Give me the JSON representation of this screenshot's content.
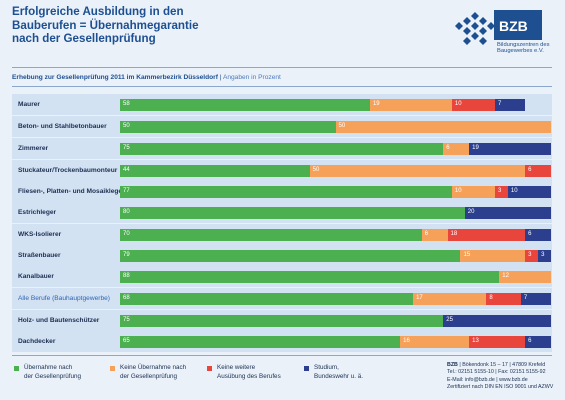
{
  "header": {
    "title_lines": [
      "Erfolgreiche Ausbildung in den",
      "Bauberufen = Übernahmegarantie",
      "nach der Gesellenprüfung"
    ],
    "logo_text": "BZB",
    "logo_subtitle_lines": [
      "Bildungszentren des",
      "Baugewerbes e.V."
    ]
  },
  "subheading": {
    "main": "Erhebung zur Gesellenprüfung 2011 im Kammerbezirk Düsseldorf",
    "separator": " | ",
    "unit": "Angaben in Prozent"
  },
  "chart_data": {
    "type": "bar",
    "orientation": "horizontal",
    "stacked": true,
    "xlim": [
      0,
      100
    ],
    "categories": [
      "Maurer",
      "Beton- und Stahlbetonbauer",
      "Zimmerer",
      "Stuckateur/Trockenbaumonteur",
      "Fliesen-, Platten- und Mosaikleger",
      "Estrichleger",
      "WKS-Isolierer",
      "Straßenbauer",
      "Kanalbauer",
      "Alle Berufe (Bauhauptgewerbe)",
      "Holz- und Bautenschützer",
      "Dachdecker"
    ],
    "highlighted_category": "Alle Berufe (Bauhauptgewerbe)",
    "series": [
      {
        "name": "Übernahme nach der Gesellenprüfung",
        "color": "#4caf50",
        "values": [
          58,
          50,
          75,
          44,
          77,
          80,
          70,
          79,
          88,
          68,
          75,
          65
        ]
      },
      {
        "name": "Keine Übernahme nach der Gesellenprüfung",
        "color": "#f6a15a",
        "values": [
          19,
          50,
          6,
          50,
          10,
          0,
          6,
          15,
          12,
          17,
          0,
          16
        ]
      },
      {
        "name": "Keine weitere Ausübung des Berufes",
        "color": "#e8453c",
        "values": [
          10,
          0,
          0,
          6,
          3,
          0,
          18,
          3,
          0,
          8,
          0,
          13
        ]
      },
      {
        "name": "Studium, Bundeswehr u. ä.",
        "color": "#2b3f8e",
        "values": [
          7,
          0,
          19,
          0,
          10,
          20,
          6,
          3,
          0,
          7,
          25,
          6
        ]
      }
    ]
  },
  "legend": [
    {
      "lines": [
        "Übernahme nach",
        "der Gesellenprüfung"
      ],
      "color": "#4caf50"
    },
    {
      "lines": [
        "Keine Übernahme nach",
        "der Gesellenprüfung"
      ],
      "color": "#f6a15a"
    },
    {
      "lines": [
        "Keine weitere",
        "Ausübung des Berufes"
      ],
      "color": "#e8453c"
    },
    {
      "lines": [
        "Studium,",
        "Bundeswehr u. ä."
      ],
      "color": "#2b3f8e"
    }
  ],
  "footer": {
    "org": "BZB",
    "address": " | Bökendonk 15 – 17 | 47809 Krefeld",
    "phone": "Tel.: 02151 5155-10 | Fax: 02151 5155-92",
    "contact": "E-Mail: info@bzb.de | www.bzb.de",
    "cert": "Zertifiziert nach DIN EN ISO 9001 und AZWV"
  }
}
